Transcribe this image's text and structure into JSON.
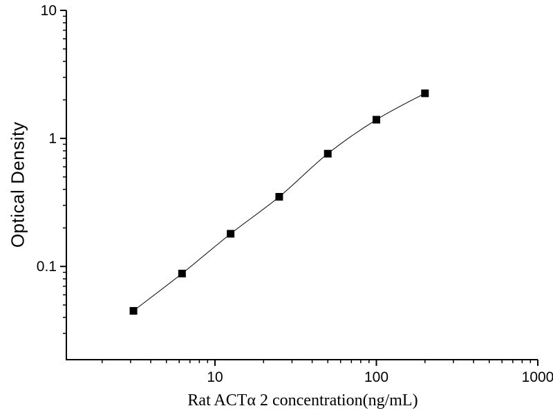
{
  "figure": {
    "background_color": "#ffffff",
    "axis_color": "#000000"
  },
  "chart_data": {
    "type": "scatter",
    "title": "",
    "xlabel": "Rat ACTα 2 concentration(ng/mL)",
    "ylabel": "Optical Density",
    "x_scale": "log",
    "y_scale": "log",
    "x": [
      3.125,
      6.25,
      12.5,
      25,
      50,
      100,
      200
    ],
    "y": [
      0.045,
      0.088,
      0.18,
      0.35,
      0.76,
      1.4,
      2.25
    ],
    "x_range": [
      1.2,
      1000
    ],
    "y_range": [
      0.0187,
      10
    ],
    "x_major_ticks": [
      10,
      100,
      1000
    ],
    "x_major_labels": [
      "10",
      "100",
      "1000"
    ],
    "x_minor_ticks": [
      2,
      3,
      4,
      5,
      6,
      7,
      8,
      9,
      20,
      30,
      40,
      50,
      60,
      70,
      80,
      90,
      200,
      300,
      400,
      500,
      600,
      700,
      800,
      900
    ],
    "y_major_ticks": [
      0.1,
      1,
      10
    ],
    "y_major_labels": [
      "0.1",
      "1",
      "10"
    ],
    "y_minor_ticks": [
      0.03,
      0.04,
      0.05,
      0.06,
      0.07,
      0.08,
      0.09,
      0.2,
      0.3,
      0.4,
      0.5,
      0.6,
      0.7,
      0.8,
      0.9,
      2,
      3,
      4,
      5,
      6,
      7,
      8,
      9
    ],
    "marker": "filled-square",
    "marker_color": "#000000",
    "marker_size_px": 11,
    "line_style": "spline",
    "line_color": "#000000",
    "legend": "none",
    "grid": false
  }
}
